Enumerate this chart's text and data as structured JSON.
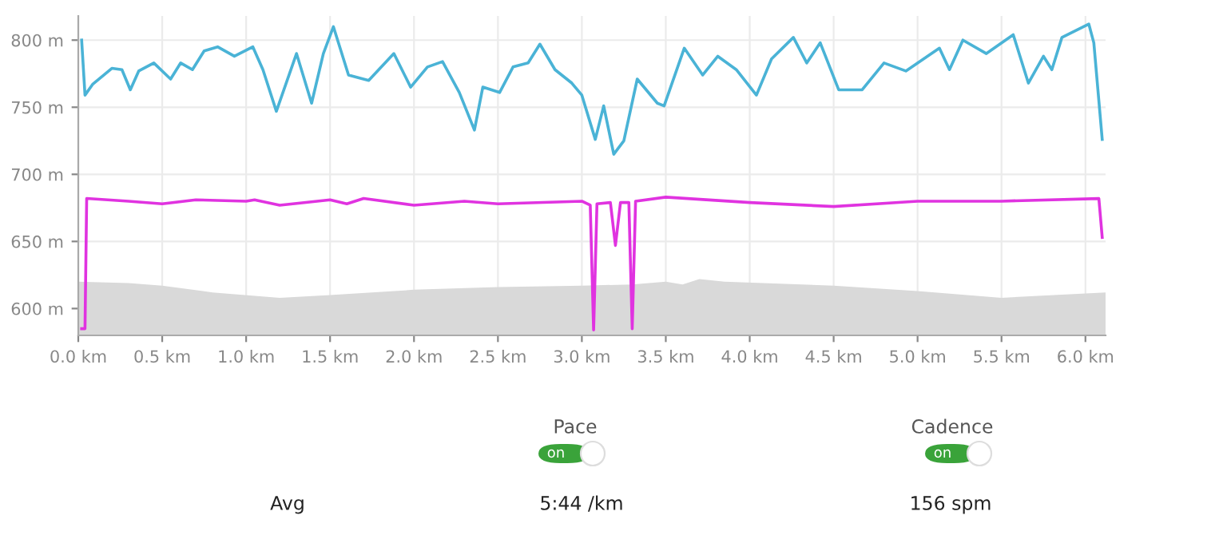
{
  "chart_data": {
    "type": "line",
    "xlim": [
      0,
      6.12
    ],
    "ylim": [
      580,
      818
    ],
    "xticks": [
      {
        "value": 0,
        "label": "0.0 km"
      },
      {
        "value": 0.5,
        "label": "0.5 km"
      },
      {
        "value": 1,
        "label": "1.0 km"
      },
      {
        "value": 1.5,
        "label": "1.5 km"
      },
      {
        "value": 2,
        "label": "2.0 km"
      },
      {
        "value": 2.5,
        "label": "2.5 km"
      },
      {
        "value": 3,
        "label": "3.0 km"
      },
      {
        "value": 3.5,
        "label": "3.5 km"
      },
      {
        "value": 4,
        "label": "4.0 km"
      },
      {
        "value": 4.5,
        "label": "4.5 km"
      },
      {
        "value": 5,
        "label": "5.0 km"
      },
      {
        "value": 5.5,
        "label": "5.5 km"
      },
      {
        "value": 6,
        "label": "6.0 km"
      }
    ],
    "yticks": [
      {
        "value": 600,
        "label": "600 m"
      },
      {
        "value": 650,
        "label": "650 m"
      },
      {
        "value": 700,
        "label": "700 m"
      },
      {
        "value": 750,
        "label": "750 m"
      },
      {
        "value": 800,
        "label": "800 m"
      }
    ],
    "grid": true,
    "series": [
      {
        "type": "area",
        "color": "#d9d9d9",
        "x": [
          0,
          0.3,
          0.5,
          0.8,
          1.2,
          1.5,
          2.0,
          2.5,
          3.0,
          3.3,
          3.5,
          3.6,
          3.7,
          3.85,
          4.5,
          5.0,
          5.5,
          6.12
        ],
        "values": [
          620,
          619,
          617,
          612,
          608,
          610,
          614,
          616,
          617,
          618,
          620,
          618,
          622,
          620,
          617,
          613,
          608,
          612
        ]
      },
      {
        "color": "#4ab3d6",
        "x": [
          0.02,
          0.04,
          0.085,
          0.2,
          0.26,
          0.31,
          0.36,
          0.45,
          0.55,
          0.61,
          0.68,
          0.75,
          0.83,
          0.93,
          1.04,
          1.1,
          1.18,
          1.3,
          1.39,
          1.46,
          1.52,
          1.61,
          1.73,
          1.88,
          1.98,
          2.08,
          2.17,
          2.27,
          2.36,
          2.41,
          2.51,
          2.59,
          2.68,
          2.75,
          2.84,
          2.94,
          3.0,
          3.08,
          3.13,
          3.19,
          3.25,
          3.33,
          3.45,
          3.49,
          3.61,
          3.72,
          3.81,
          3.92,
          4.04,
          4.13,
          4.26,
          4.34,
          4.42,
          4.53,
          4.67,
          4.8,
          4.93,
          5.13,
          5.19,
          5.27,
          5.41,
          5.57,
          5.66,
          5.75,
          5.8,
          5.86,
          6.02,
          6.05,
          6.1
        ],
        "values": [
          800,
          759,
          767,
          779,
          778,
          763,
          777,
          783,
          771,
          783,
          778,
          792,
          795,
          788,
          795,
          778,
          747,
          790,
          753,
          790,
          810,
          774,
          770,
          790,
          765,
          780,
          784,
          761,
          733,
          765,
          761,
          780,
          783,
          797,
          778,
          768,
          759,
          726,
          751,
          715,
          725,
          771,
          753,
          751,
          794,
          774,
          788,
          778,
          759,
          786,
          802,
          783,
          798,
          763,
          763,
          783,
          777,
          794,
          778,
          800,
          790,
          804,
          768,
          788,
          778,
          802,
          812,
          798,
          726
        ]
      },
      {
        "color": "#e033e0",
        "x": [
          0.02,
          0.04,
          0.05,
          0.3,
          0.5,
          0.7,
          1.0,
          1.05,
          1.2,
          1.5,
          1.6,
          1.7,
          2.0,
          2.3,
          2.5,
          3.0,
          3.05,
          3.07,
          3.09,
          3.17,
          3.2,
          3.23,
          3.28,
          3.3,
          3.32,
          3.5,
          4.0,
          4.5,
          5.0,
          5.5,
          6.08,
          6.1
        ],
        "values": [
          585,
          585,
          682,
          680,
          678,
          681,
          680,
          681,
          677,
          681,
          678,
          682,
          677,
          680,
          678,
          680,
          677,
          584,
          678,
          679,
          647,
          679,
          679,
          585,
          680,
          683,
          679,
          676,
          680,
          680,
          682,
          653
        ]
      }
    ],
    "annotations": [
      "Pace",
      "on",
      "Cadence",
      "on",
      "Avg",
      "5:44 /km",
      "156 spm"
    ]
  }
}
